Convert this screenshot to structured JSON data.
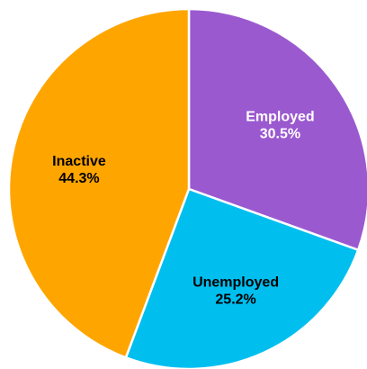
{
  "chart_data": {
    "type": "pie",
    "title": "",
    "categories": [
      "Employed",
      "Unemployed",
      "Inactive"
    ],
    "values": [
      30.5,
      25.2,
      44.3
    ],
    "value_labels": [
      "30.5%",
      "25.2%",
      "44.3%"
    ],
    "colors": [
      "#9B59D0",
      "#00BFEF",
      "#FFA500"
    ],
    "label_colors": [
      "#ffffff",
      "#000000",
      "#000000"
    ],
    "start_angle_deg": 0,
    "direction": "clockwise",
    "legend": "none"
  }
}
